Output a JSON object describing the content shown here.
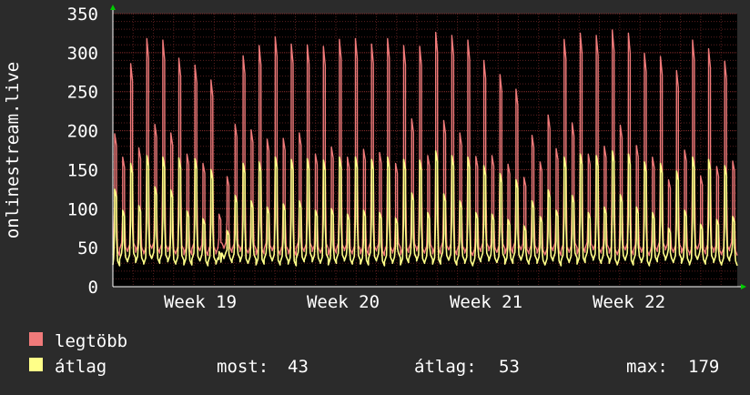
{
  "chart_data": {
    "type": "line",
    "ylabel": "onlinestream.live",
    "ylim": [
      0,
      350
    ],
    "yticks": [
      0,
      50,
      100,
      150,
      200,
      250,
      300,
      350
    ],
    "xticks": [
      "Week 19",
      "Week 20",
      "Week 21",
      "Week 22"
    ],
    "grid": true,
    "legend_position": "bottom-left",
    "colors": {
      "background": "#2b2b2b",
      "plot_area": "#000000",
      "grid_minor": "#5a1f1f",
      "grid_major": "#8a2d2d",
      "axis_arrow": "#00cc00"
    },
    "series": [
      {
        "name": "legtöbb",
        "color": "#f07a7a",
        "style": "line",
        "peaks": [
          196,
          166,
          286,
          178,
          318,
          208,
          316,
          197,
          293,
          170,
          284,
          158,
          265,
          93,
          141,
          208,
          296,
          201,
          309,
          189,
          320,
          190,
          311,
          197,
          310,
          170,
          308,
          179,
          317,
          166,
          318,
          176,
          311,
          172,
          318,
          158,
          309,
          215,
          308,
          168,
          326,
          213,
          322,
          197,
          316,
          167,
          290,
          168,
          272,
          157,
          253,
          140,
          194,
          160,
          220,
          177,
          317,
          210,
          325,
          170,
          322,
          180,
          329,
          207,
          325,
          181,
          299,
          166,
          295,
          137,
          277,
          175,
          316,
          142,
          305,
          154,
          289,
          161
        ]
      },
      {
        "name": "átlag",
        "color": "#ffff88",
        "style": "line",
        "peaks": [
          125,
          98,
          158,
          104,
          168,
          128,
          166,
          124,
          165,
          97,
          164,
          87,
          150,
          45,
          72,
          117,
          158,
          110,
          160,
          102,
          166,
          106,
          163,
          110,
          164,
          98,
          162,
          100,
          166,
          93,
          166,
          98,
          163,
          95,
          166,
          88,
          163,
          120,
          162,
          95,
          174,
          119,
          168,
          110,
          166,
          95,
          155,
          93,
          145,
          86,
          137,
          78,
          110,
          90,
          124,
          98,
          166,
          117,
          170,
          95,
          168,
          102,
          174,
          118,
          170,
          102,
          160,
          95,
          158,
          75,
          148,
          98,
          166,
          80,
          163,
          86,
          155,
          90
        ]
      }
    ],
    "trough": {
      "legtöbb": 45,
      "átlag": 32
    }
  },
  "legend": {
    "items": [
      {
        "label": "legtöbb",
        "color": "#f07a7a"
      },
      {
        "label": "átlag",
        "color": "#ffff88"
      }
    ],
    "stats": {
      "now_label": "most:",
      "now_value": "43",
      "avg_label": "átlag:",
      "avg_value": "53",
      "max_label": "max:",
      "max_value": "179"
    }
  }
}
